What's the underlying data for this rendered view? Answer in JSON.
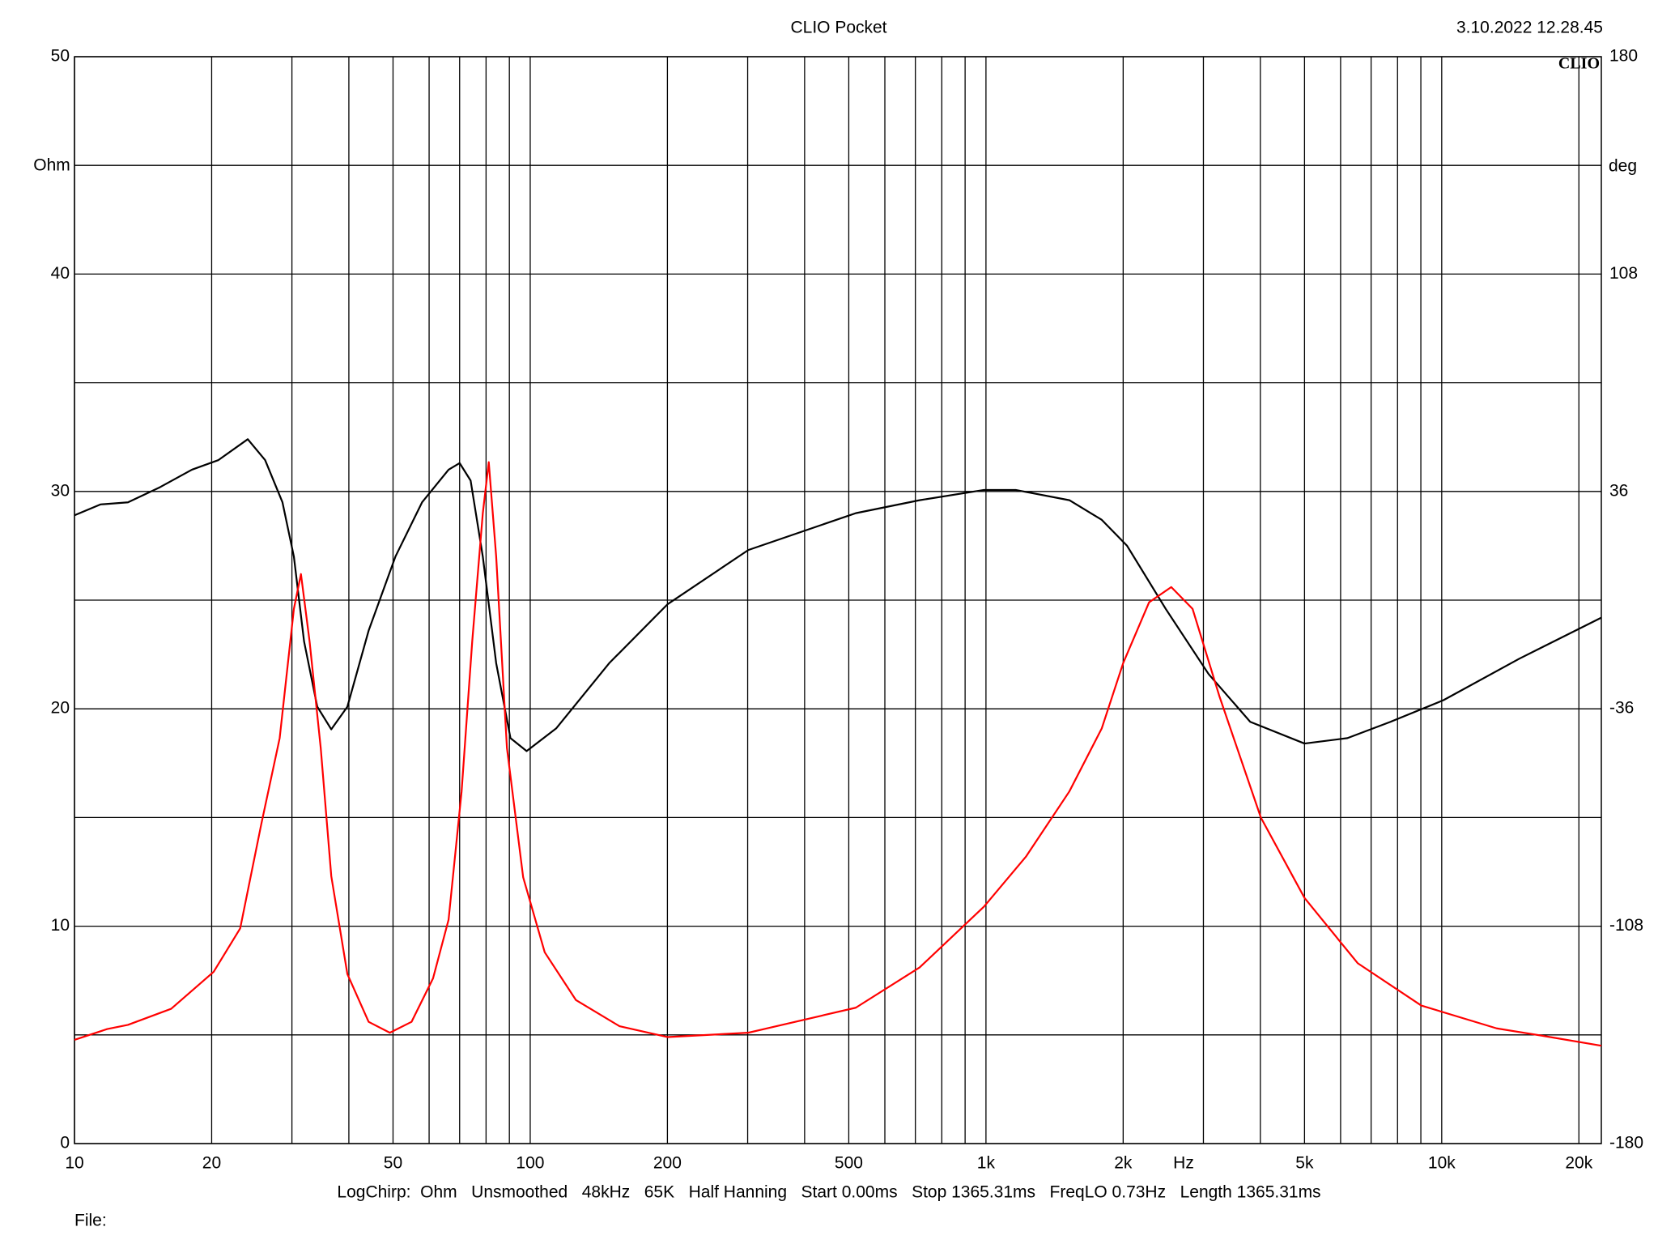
{
  "chart_data": {
    "type": "line",
    "title": "CLIO Pocket",
    "timestamp": "3.10.2022 12.28.45",
    "logo": "CLIO",
    "ylabel": "Ohm",
    "y2label": "deg",
    "xlabel": "Hz",
    "footer": "LogChirp:  Ohm   Unsmoothed   48kHz   65K   Half Hanning   Start 0.00ms   Stop 1365.31ms   FreqLO 0.73Hz   Length 1365.31ms",
    "file_label": "File:",
    "xscale": "log",
    "grid": true,
    "xlim": [
      10,
      22400
    ],
    "xticks": [
      10,
      20,
      50,
      100,
      200,
      500,
      {
        "value": 1000,
        "label": "1k"
      },
      {
        "value": 2000,
        "label": "2k"
      },
      {
        "value": 5000,
        "label": "5k"
      },
      {
        "value": 10000,
        "label": "10k"
      },
      {
        "value": 20000,
        "label": "20k"
      }
    ],
    "minor_xticks": [
      30,
      40,
      60,
      70,
      80,
      90,
      300,
      400,
      600,
      700,
      800,
      900,
      3000,
      4000,
      6000,
      7000,
      8000,
      9000
    ],
    "ylim": [
      0,
      50
    ],
    "yticks": [
      0,
      10,
      20,
      30,
      40,
      50
    ],
    "minor_yticks": [
      5,
      15,
      25,
      35,
      45
    ],
    "y2lim": [
      -180,
      180
    ],
    "y2ticks": [
      -180,
      -108,
      -36,
      36,
      108,
      180
    ],
    "series": [
      {
        "color": "#ff0000",
        "axis": "y",
        "x": [
          10,
          11.8,
          13.1,
          16.3,
          20.2,
          23.1,
          25.7,
          28.2,
          30.3,
          31.4,
          32.8,
          34.7,
          36.6,
          39.7,
          44.2,
          49.2,
          54.9,
          61.2,
          66.2,
          70.7,
          74.6,
          78.7,
          81.1,
          84.2,
          88.9,
          96.5,
          107.6,
          126,
          157,
          200,
          301,
          518,
          715,
          990,
          1224,
          1524,
          1795,
          2000,
          2280,
          2550,
          2840,
          3250,
          4010,
          5000,
          6540,
          9020,
          13200,
          17300,
          22400
        ],
        "values": [
          4.77,
          5.27,
          5.46,
          6.2,
          7.9,
          9.9,
          14.7,
          18.65,
          24.6,
          26.2,
          23.1,
          18.2,
          12.3,
          7.8,
          5.6,
          5.1,
          5.6,
          7.6,
          10.3,
          16.2,
          23.1,
          29.0,
          31.35,
          27.0,
          18.2,
          12.25,
          8.8,
          6.6,
          5.4,
          4.9,
          5.1,
          6.25,
          8.1,
          10.9,
          13.2,
          16.2,
          19.1,
          22.1,
          24.9,
          25.6,
          24.6,
          20.6,
          15.0,
          11.3,
          8.3,
          6.35,
          5.3,
          4.9,
          4.5
        ]
      },
      {
        "color": "#000000",
        "axis": "y2",
        "x": [
          10,
          11.4,
          13.1,
          15.4,
          18.1,
          20.7,
          24.0,
          26.2,
          28.6,
          30.3,
          31.9,
          34.1,
          36.6,
          39.7,
          44.2,
          50.6,
          57.9,
          66.2,
          70,
          74.0,
          78.7,
          84.2,
          90.5,
          98.2,
          114,
          149,
          200,
          301,
          518,
          715,
          990,
          1162,
          1524,
          1795,
          2040,
          2480,
          3080,
          3800,
          5000,
          6210,
          7720,
          10100,
          14800,
          22400
        ],
        "values": [
          28.1,
          31.7,
          32.4,
          37.4,
          43.2,
          46.4,
          53.3,
          46.4,
          32.4,
          14.4,
          -13.7,
          -35.3,
          -42.8,
          -35.3,
          -10.1,
          14.4,
          32.4,
          43.2,
          45.4,
          39.6,
          14.4,
          -20.9,
          -45.7,
          -50.0,
          -42.5,
          -20.9,
          -1.4,
          16.6,
          28.8,
          33.1,
          36.5,
          36.5,
          33.1,
          26.6,
          18.0,
          -2.9,
          -24.5,
          -40.3,
          -47.5,
          -45.7,
          -40.3,
          -33.1,
          -19.4,
          -5.8
        ]
      }
    ]
  }
}
